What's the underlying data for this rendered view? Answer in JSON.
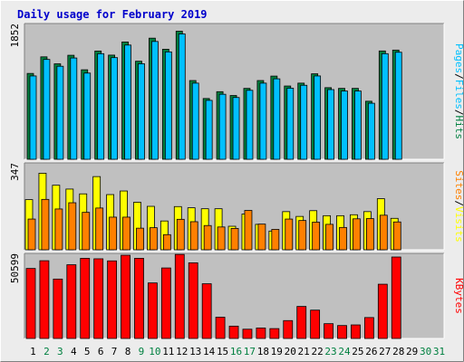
{
  "title": "Daily usage for February 2019",
  "colors": {
    "page_bg": "#ececec",
    "plot_bg": "#c0c0c0",
    "title": "#0000cc",
    "hits": "#008040",
    "files": "#00c0ff",
    "pages": "#00c0ff",
    "visits": "#ffff00",
    "sites": "#ff8000",
    "kbytes": "#ff0000",
    "weekday_label": "#000000",
    "weekend_label": "#008040"
  },
  "chart_data": [
    {
      "type": "bar",
      "name": "hits-files",
      "ymax_label": "1852",
      "ymax": 1852,
      "legend": [
        "Hits",
        "Files",
        "Pages"
      ],
      "x": [
        "1",
        "2",
        "3",
        "4",
        "5",
        "6",
        "7",
        "8",
        "9",
        "10",
        "11",
        "12",
        "13",
        "14",
        "15",
        "16",
        "17",
        "18",
        "19",
        "20",
        "21",
        "22",
        "23",
        "24",
        "25",
        "26",
        "27",
        "28",
        "29",
        "30",
        "31"
      ],
      "series": [
        {
          "name": "Hits",
          "values": [
            1195,
            1426,
            1329,
            1448,
            1246,
            1507,
            1450,
            1633,
            1365,
            1686,
            1532,
            1783,
            1096,
            846,
            941,
            888,
            987,
            1096,
            1158,
            1020,
            1060,
            1190,
            997,
            987,
            987,
            808,
            1508,
            1520,
            null,
            null,
            null
          ]
        },
        {
          "name": "Files",
          "values": [
            1160,
            1390,
            1295,
            1410,
            1200,
            1470,
            1415,
            1590,
            1330,
            1640,
            1495,
            1745,
            1060,
            820,
            905,
            860,
            960,
            1060,
            1120,
            990,
            1030,
            1160,
            970,
            950,
            950,
            780,
            1470,
            1490,
            null,
            null,
            null
          ]
        }
      ]
    },
    {
      "type": "bar",
      "name": "visits-sites",
      "ymax_label": "347",
      "ymax": 347,
      "legend": [
        "Visits",
        "Sites"
      ],
      "x": [
        "1",
        "2",
        "3",
        "4",
        "5",
        "6",
        "7",
        "8",
        "9",
        "10",
        "11",
        "12",
        "13",
        "14",
        "15",
        "16",
        "17",
        "18",
        "19",
        "20",
        "21",
        "22",
        "23",
        "24",
        "25",
        "26",
        "27",
        "28",
        "29",
        "30",
        "31"
      ],
      "series": [
        {
          "name": "Visits",
          "values": [
            209,
            319,
            269,
            253,
            233,
            305,
            230,
            245,
            198,
            181,
            120,
            180,
            175,
            171,
            171,
            98,
            149,
            106,
            78,
            159,
            139,
            163,
            142,
            142,
            146,
            159,
            213,
            131,
            null,
            null,
            null
          ]
        },
        {
          "name": "Sites",
          "values": [
            128,
            210,
            170,
            196,
            156,
            174,
            136,
            136,
            90,
            92,
            63,
            127,
            117,
            101,
            95,
            89,
            164,
            107,
            85,
            128,
            122,
            115,
            106,
            93,
            129,
            130,
            144,
            116,
            null,
            null,
            null
          ]
        }
      ]
    },
    {
      "type": "bar",
      "name": "kbytes",
      "ymax_label": "50599",
      "ymax": 50599,
      "legend": [
        "KBytes"
      ],
      "x": [
        "1",
        "2",
        "3",
        "4",
        "5",
        "6",
        "7",
        "8",
        "9",
        "10",
        "11",
        "12",
        "13",
        "14",
        "15",
        "16",
        "17",
        "18",
        "19",
        "20",
        "21",
        "22",
        "23",
        "24",
        "25",
        "26",
        "27",
        "28",
        "29",
        "30",
        "31"
      ],
      "series": [
        {
          "name": "KBytes",
          "values": [
            43500,
            48300,
            36900,
            45800,
            49800,
            49500,
            48200,
            51700,
            49800,
            34500,
            43800,
            52200,
            47000,
            34000,
            13200,
            7660,
            5750,
            6510,
            6130,
            11100,
            19900,
            17600,
            9190,
            8040,
            8420,
            13000,
            33700,
            50600,
            null,
            null,
            null
          ]
        }
      ]
    }
  ],
  "x_labels": [
    {
      "day": "1",
      "weekend": false
    },
    {
      "day": "2",
      "weekend": true
    },
    {
      "day": "3",
      "weekend": true
    },
    {
      "day": "4",
      "weekend": false
    },
    {
      "day": "5",
      "weekend": false
    },
    {
      "day": "6",
      "weekend": false
    },
    {
      "day": "7",
      "weekend": false
    },
    {
      "day": "8",
      "weekend": false
    },
    {
      "day": "9",
      "weekend": true
    },
    {
      "day": "10",
      "weekend": true
    },
    {
      "day": "11",
      "weekend": false
    },
    {
      "day": "12",
      "weekend": false
    },
    {
      "day": "13",
      "weekend": false
    },
    {
      "day": "14",
      "weekend": false
    },
    {
      "day": "15",
      "weekend": false
    },
    {
      "day": "16",
      "weekend": true
    },
    {
      "day": "17",
      "weekend": true
    },
    {
      "day": "18",
      "weekend": false
    },
    {
      "day": "19",
      "weekend": false
    },
    {
      "day": "20",
      "weekend": false
    },
    {
      "day": "21",
      "weekend": false
    },
    {
      "day": "22",
      "weekend": false
    },
    {
      "day": "23",
      "weekend": true
    },
    {
      "day": "24",
      "weekend": true
    },
    {
      "day": "25",
      "weekend": false
    },
    {
      "day": "26",
      "weekend": false
    },
    {
      "day": "27",
      "weekend": false
    },
    {
      "day": "28",
      "weekend": false
    },
    {
      "day": "29",
      "weekend": false
    },
    {
      "day": "30",
      "weekend": true
    },
    {
      "day": "31",
      "weekend": true
    }
  ]
}
